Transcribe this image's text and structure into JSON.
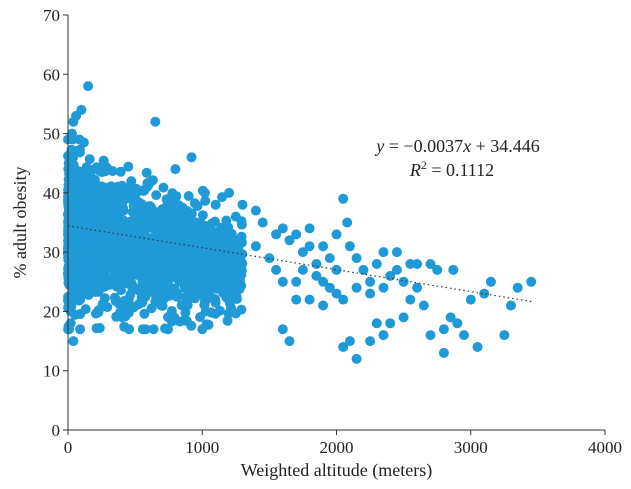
{
  "colors": {
    "point": "#1f9ad6",
    "axis": "#333333",
    "trendline": "#333333"
  },
  "chart_data": {
    "type": "scatter",
    "title": "",
    "xlabel": "Weighted altitude (meters)",
    "ylabel": "% adult obesity",
    "xlim": [
      0,
      4000
    ],
    "ylim": [
      0,
      70
    ],
    "x_ticks": [
      "0",
      "1000",
      "2000",
      "3000",
      "4000"
    ],
    "y_ticks": [
      "0",
      "10",
      "20",
      "30",
      "40",
      "50",
      "60",
      "70"
    ],
    "grid": false,
    "legend": "none",
    "trendline": {
      "slope": -0.0037,
      "intercept": 34.446,
      "x_range": [
        0,
        3470
      ],
      "style": "dotted"
    },
    "annotation": {
      "equation": "y = −0.0037x + 34.446",
      "r_squared": "R2 = 0.1112"
    },
    "series": [
      {
        "dense_cluster": {
          "x_range": [
            0,
            1300
          ],
          "y_range": [
            17,
            49
          ],
          "note_count": 1600
        },
        "points": [
          [
            150,
            58
          ],
          [
            40,
            52
          ],
          [
            60,
            53
          ],
          [
            100,
            54
          ],
          [
            30,
            50
          ],
          [
            650,
            52
          ],
          [
            40,
            15
          ],
          [
            20,
            18
          ],
          [
            90,
            17
          ],
          [
            5,
            25
          ],
          [
            5,
            35
          ],
          [
            5,
            45
          ],
          [
            1000,
            17
          ],
          [
            920,
            46
          ],
          [
            800,
            44
          ],
          [
            1020,
            40
          ],
          [
            1100,
            38
          ],
          [
            1200,
            40
          ],
          [
            1250,
            36
          ],
          [
            1300,
            38
          ],
          [
            1400,
            37
          ],
          [
            1450,
            35
          ],
          [
            1550,
            33
          ],
          [
            1600,
            34
          ],
          [
            1650,
            32
          ],
          [
            1700,
            33
          ],
          [
            1750,
            30
          ],
          [
            1800,
            34
          ],
          [
            1850,
            28
          ],
          [
            1900,
            31
          ],
          [
            1950,
            29
          ],
          [
            2000,
            33
          ],
          [
            2050,
            39
          ],
          [
            2080,
            35
          ],
          [
            2100,
            31
          ],
          [
            2150,
            29
          ],
          [
            2200,
            27
          ],
          [
            2250,
            25
          ],
          [
            2300,
            28
          ],
          [
            2350,
            24
          ],
          [
            2400,
            26
          ],
          [
            2450,
            30
          ],
          [
            2500,
            25
          ],
          [
            2550,
            22
          ],
          [
            2600,
            28
          ],
          [
            2700,
            28
          ],
          [
            2750,
            27
          ],
          [
            2800,
            17
          ],
          [
            2850,
            19
          ],
          [
            2870,
            27
          ],
          [
            2900,
            18
          ],
          [
            2950,
            16
          ],
          [
            3000,
            22
          ],
          [
            3050,
            14
          ],
          [
            3100,
            23
          ],
          [
            3150,
            25
          ],
          [
            3250,
            16
          ],
          [
            3300,
            21
          ],
          [
            3350,
            24
          ],
          [
            3450,
            25
          ],
          [
            1600,
            17
          ],
          [
            1650,
            15
          ],
          [
            1700,
            22
          ],
          [
            1750,
            27
          ],
          [
            1800,
            22
          ],
          [
            1850,
            26
          ],
          [
            1900,
            21
          ],
          [
            1950,
            24
          ],
          [
            2000,
            27
          ],
          [
            2050,
            14
          ],
          [
            2100,
            15
          ],
          [
            2150,
            12
          ],
          [
            2250,
            15
          ],
          [
            2300,
            18
          ],
          [
            2350,
            16
          ],
          [
            2400,
            18
          ],
          [
            2500,
            19
          ],
          [
            2550,
            28
          ],
          [
            2650,
            21
          ],
          [
            2700,
            16
          ],
          [
            2800,
            13
          ],
          [
            1400,
            31
          ],
          [
            1500,
            29
          ],
          [
            1550,
            27
          ],
          [
            1600,
            25
          ],
          [
            1700,
            25
          ],
          [
            1800,
            31
          ],
          [
            1900,
            25
          ],
          [
            2000,
            23
          ],
          [
            2050,
            22
          ],
          [
            2150,
            24
          ],
          [
            2250,
            23
          ],
          [
            2350,
            30
          ],
          [
            2450,
            27
          ],
          [
            2600,
            24
          ]
        ]
      }
    ]
  }
}
